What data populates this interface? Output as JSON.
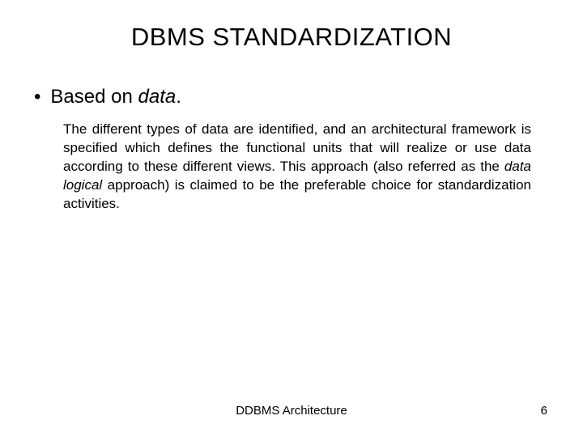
{
  "title": "DBMS STANDARDIZATION",
  "bullet": {
    "prefix": "Based on ",
    "italic": "data",
    "suffix": "."
  },
  "body": {
    "part1": "The different types of data are identified, and an architectural framework is specified which defines the functional units that will realize or use data according to these different views. This approach (also referred as the ",
    "italic": "data logical",
    "part2": " approach) is claimed to be the preferable choice for standardization activities."
  },
  "footer": "DDBMS Architecture",
  "page": "6"
}
